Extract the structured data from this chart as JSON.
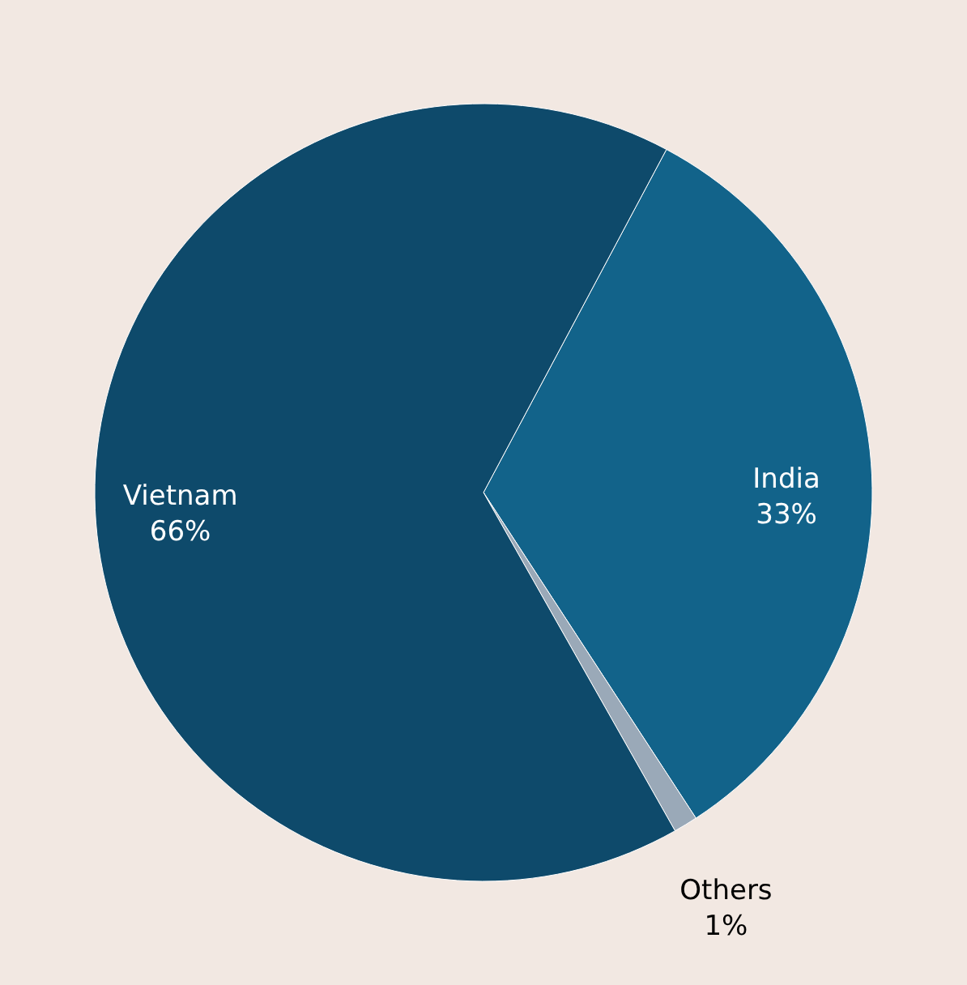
{
  "chart_data": {
    "type": "pie",
    "categories": [
      "India",
      "Others",
      "Vietnam"
    ],
    "values": [
      33,
      1,
      66
    ],
    "colors": [
      "#12638a",
      "#9aa9b8",
      "#0e4a6b"
    ],
    "value_labels": [
      "33%",
      "1%",
      "66%"
    ],
    "legend": false
  }
}
